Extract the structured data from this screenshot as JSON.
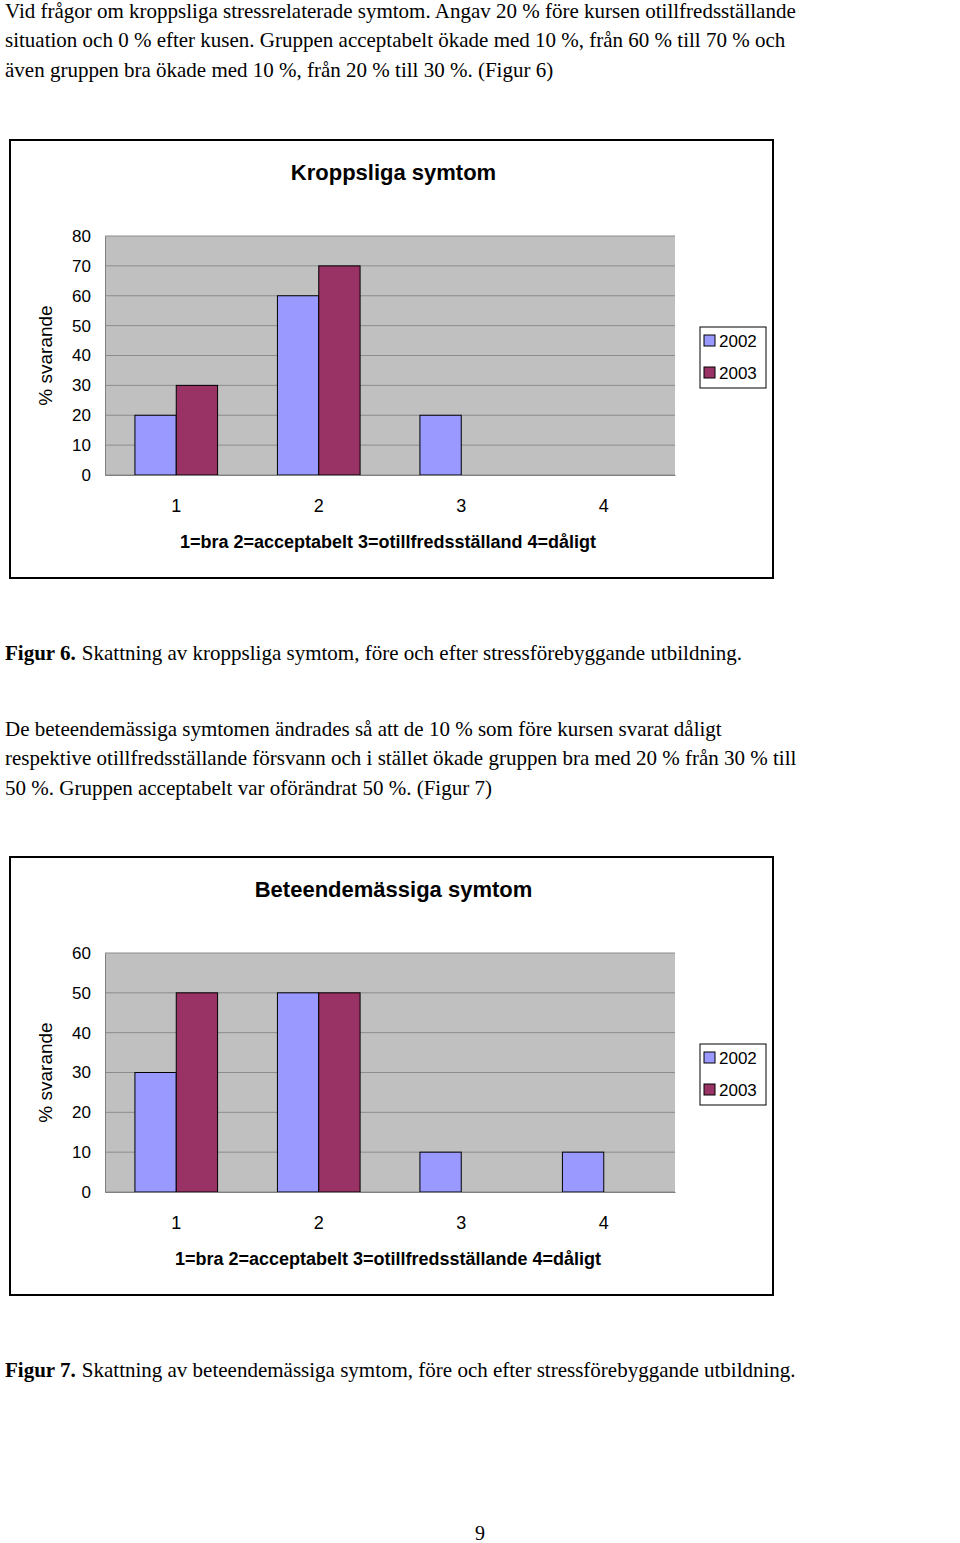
{
  "paragraphs": [
    [
      "Vid frågor om kroppsliga stressrelaterade symtom. Angav 20 % före kursen otillfredsställande",
      "situation och 0 % efter kusen. Gruppen acceptabelt ökade med 10 %, från 60 % till 70 % och",
      "även gruppen bra ökade med 10 %, från 20 % till 30 %. (Figur 6)"
    ],
    [
      "De beteendemässiga symtomen ändrades så att de 10 % som före kursen svarat dåligt",
      "respektive otillfredsställande försvann och i stället ökade gruppen bra med 20 % från 30 % till",
      "50 %. Gruppen acceptabelt var oförändrat 50 %. (Figur 7)"
    ]
  ],
  "chart_data": [
    {
      "type": "bar",
      "title": "Kroppsliga symtom",
      "y_label": "% svarande",
      "x_label": "1=bra 2=acceptabelt 3=otillfredsställand 4=dåligt",
      "categories": [
        "1",
        "2",
        "3",
        "4"
      ],
      "series": [
        {
          "name": "2002",
          "color": "#9999ff",
          "values": [
            20,
            60,
            20,
            0
          ]
        },
        {
          "name": "2003",
          "color": "#993366",
          "values": [
            30,
            70,
            0,
            0
          ]
        }
      ],
      "ylim": [
        0,
        80
      ],
      "yticks": [
        0,
        10,
        20,
        30,
        40,
        50,
        60,
        70,
        80
      ],
      "grid": true,
      "legend": "right"
    },
    {
      "type": "bar",
      "title": "Beteendemässiga symtom",
      "y_label": "% svarande",
      "x_label": "1=bra 2=acceptabelt 3=otillfredsställande 4=dåligt",
      "categories": [
        "1",
        "2",
        "3",
        "4"
      ],
      "series": [
        {
          "name": "2002",
          "color": "#9999ff",
          "values": [
            30,
            50,
            10,
            10
          ]
        },
        {
          "name": "2003",
          "color": "#993366",
          "values": [
            50,
            50,
            0,
            0
          ]
        }
      ],
      "ylim": [
        0,
        60
      ],
      "yticks": [
        0,
        10,
        20,
        30,
        40,
        50,
        60
      ],
      "grid": true,
      "legend": "right"
    }
  ],
  "captions": [
    {
      "label": "Figur 6.",
      "text": "Skattning av kroppsliga symtom, före och efter stressförebyggande utbildning."
    },
    {
      "label": "Figur 7.",
      "text": "Skattning av beteendemässiga symtom, före och efter stressförebyggande utbildning."
    }
  ],
  "page_number": 9
}
